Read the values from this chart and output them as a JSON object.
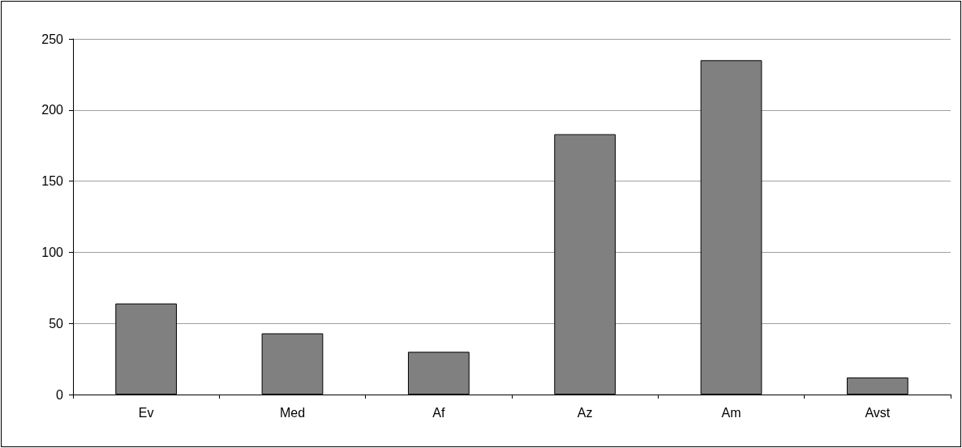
{
  "chart_data": {
    "type": "bar",
    "categories": [
      "Ev",
      "Med",
      "Af",
      "Az",
      "Am",
      "Avst"
    ],
    "values": [
      64,
      43,
      30,
      183,
      235,
      12
    ],
    "color": "#808080",
    "ylim": [
      0,
      250
    ],
    "yticks": [
      0,
      50,
      100,
      150,
      200,
      250
    ],
    "grid": "y"
  }
}
